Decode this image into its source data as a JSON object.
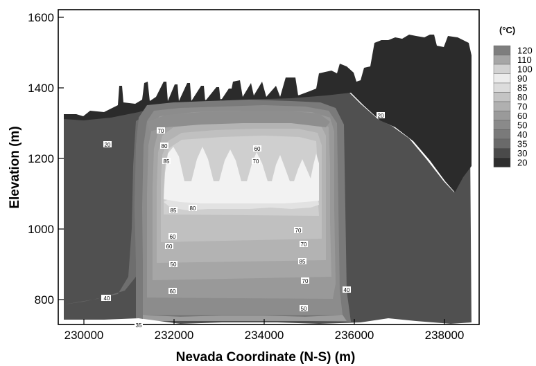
{
  "chart_data": {
    "type": "heatmap",
    "title": "",
    "xlabel": "Nevada Coordinate (N-S) (m)",
    "ylabel": "Elevation (m)",
    "xlim": [
      229400,
      239100
    ],
    "ylim": [
      700,
      1630
    ],
    "x_ticks": [
      "230000",
      "232000",
      "234000",
      "236000",
      "238000"
    ],
    "y_ticks": [
      "800",
      "1000",
      "1200",
      "1400",
      "1600"
    ],
    "colorbar": {
      "title": "(°C)",
      "levels": [
        "120",
        "110",
        "100",
        "90",
        "85",
        "80",
        "70",
        "60",
        "50",
        "40",
        "35",
        "30",
        "20"
      ],
      "colors": [
        "#7e7e7e",
        "#a6a6a6",
        "#d2d2d2",
        "#ececec",
        "#dcdcdc",
        "#c4c4c4",
        "#b0b0b0",
        "#9a9a9a",
        "#8a8a8a",
        "#7a7a7a",
        "#6a6a6a",
        "#4a4a4a",
        "#2e2e2e"
      ]
    },
    "contour_labels": [
      "20",
      "20",
      "30",
      "70",
      "80",
      "85",
      "60",
      "70",
      "85",
      "80",
      "70",
      "60",
      "70",
      "60",
      "50",
      "85",
      "70",
      "60",
      "50",
      "40",
      "35",
      "40"
    ]
  }
}
